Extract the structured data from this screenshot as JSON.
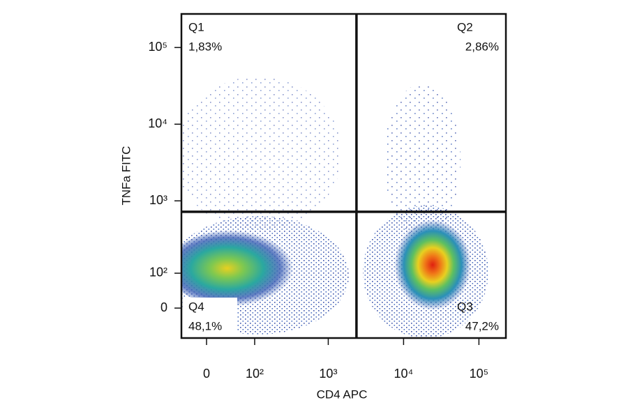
{
  "chart_data": {
    "type": "scatter",
    "x_label": "CD4 APC",
    "y_label": "TNFa FITC",
    "scale": "biexponential",
    "xlim": [
      -41,
      228000
    ],
    "ylim": [
      -82,
      274000
    ],
    "xticks": [
      0,
      {
        "value": 100,
        "label": "10²"
      },
      {
        "value": 1000,
        "label": "10³"
      },
      {
        "value": 10000,
        "label": "10⁴"
      },
      {
        "value": 100000,
        "label": "10⁵"
      }
    ],
    "yticks": [
      0,
      {
        "value": 100,
        "label": "10²"
      },
      {
        "value": 1000,
        "label": "10³"
      },
      {
        "value": 10000,
        "label": "10⁴"
      },
      {
        "value": 100000,
        "label": "10⁵"
      }
    ],
    "gates": {
      "x": 2370,
      "y": 718
    },
    "categories": [
      "Q1",
      "Q2",
      "Q3",
      "Q4"
    ],
    "values": [
      1.83,
      2.86,
      47.2,
      48.1
    ],
    "value_labels": [
      "1,83%",
      "2,86%",
      "47,2%",
      "48,1%"
    ]
  }
}
